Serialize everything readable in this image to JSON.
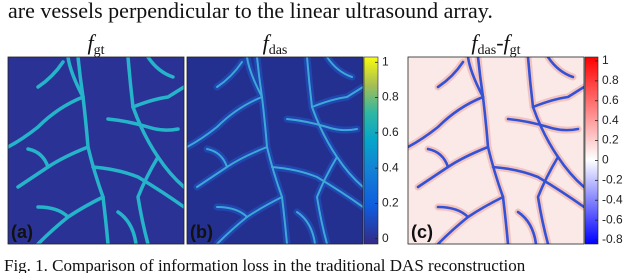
{
  "header_text": "are vessels perpendicular to the linear ultrasound array.",
  "figures": [
    {
      "title": [
        {
          "text": "f",
          "style": "italic"
        },
        {
          "text": "gt",
          "style": "sub"
        }
      ],
      "label": "(a)"
    },
    {
      "title": [
        {
          "text": "f",
          "style": "italic"
        },
        {
          "text": "das",
          "style": "sub"
        }
      ],
      "label": "(b)"
    },
    {
      "title": [
        {
          "text": "f",
          "style": "italic"
        },
        {
          "text": "das",
          "style": "sub"
        },
        {
          "text": "-",
          "style": "normal"
        },
        {
          "text": "f",
          "style": "italic"
        },
        {
          "text": "gt",
          "style": "sub"
        }
      ],
      "label": "(c)"
    }
  ],
  "colorbars": [
    {
      "range": [
        -0.03,
        1.03
      ],
      "ticks": [
        0,
        0.2,
        0.4,
        0.6,
        0.8,
        1
      ]
    },
    {
      "range": [
        -0.84,
        1.04
      ],
      "ticks": [
        -0.8,
        -0.6,
        -0.4,
        -0.2,
        0,
        0.2,
        0.4,
        0.6,
        0.8,
        1
      ]
    }
  ],
  "caption": "Fig. 1.  Comparison of information loss in the traditional DAS reconstruction"
}
